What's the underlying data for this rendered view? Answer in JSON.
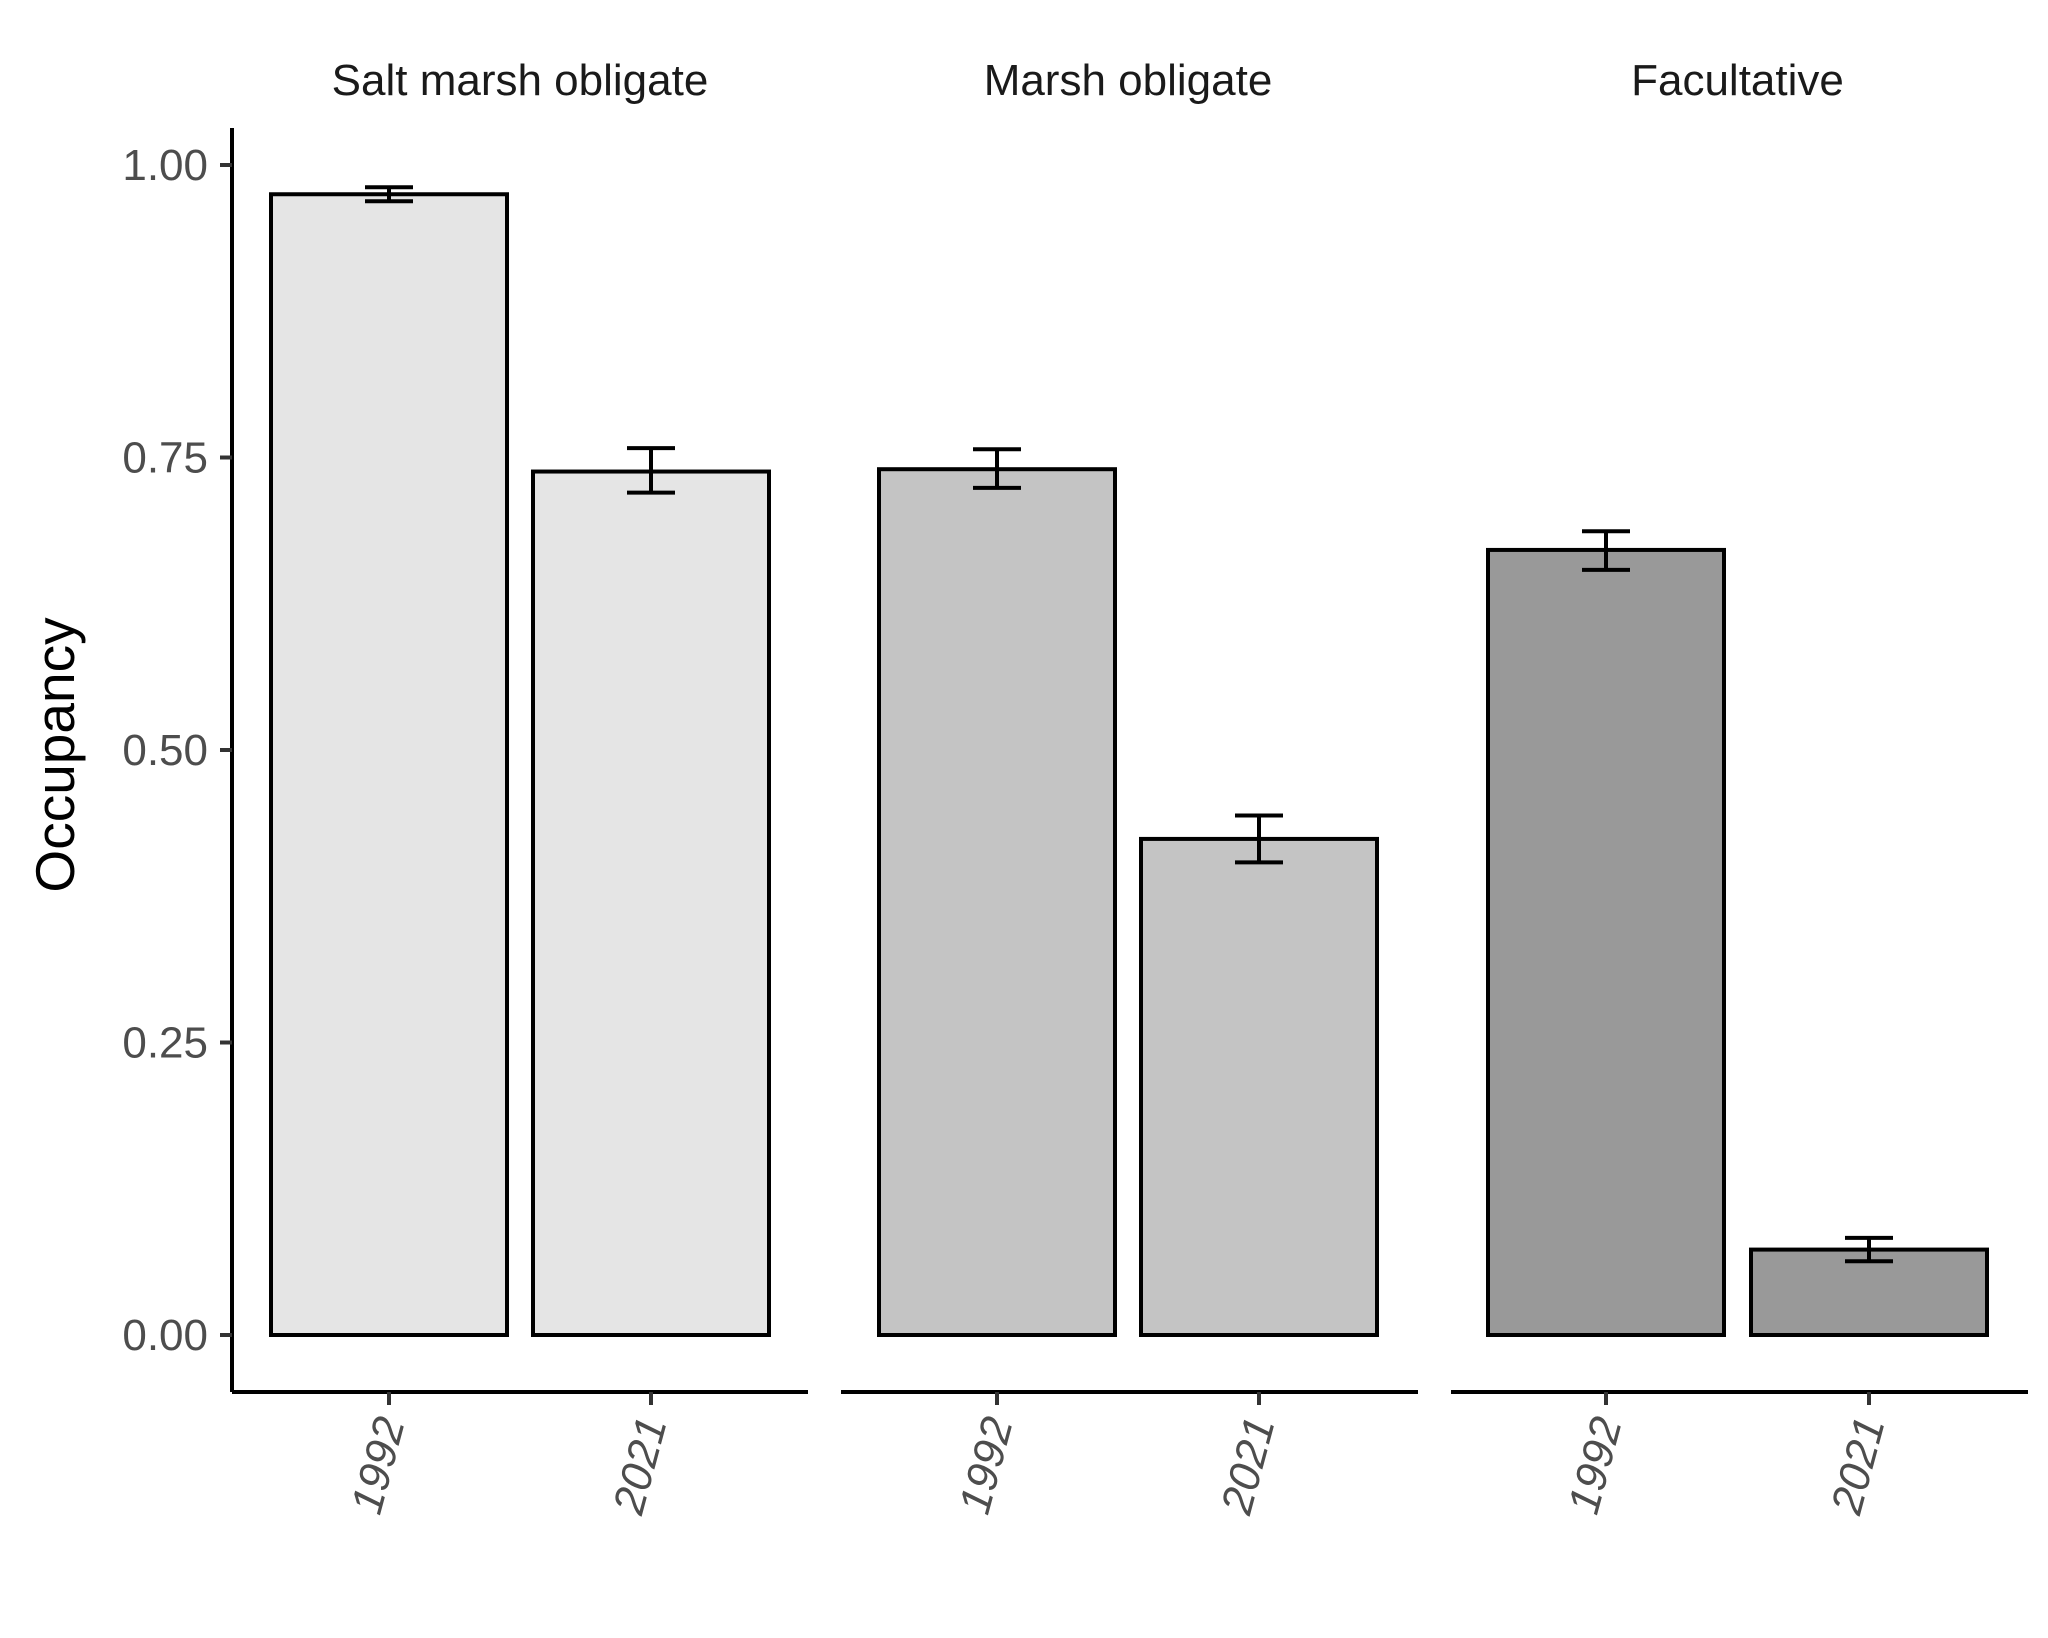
{
  "chart_data": {
    "type": "bar",
    "ylabel": "Occupancy",
    "xlabel": "",
    "ylim": [
      0,
      1
    ],
    "yticks": [
      "0.00",
      "0.25",
      "0.50",
      "0.75",
      "1.00"
    ],
    "grid": false,
    "panels": [
      {
        "label": "Salt marsh obligate",
        "fill": "#e5e5e5",
        "categories": [
          "1992",
          "2021"
        ],
        "values": [
          0.975,
          0.738
        ],
        "error_low": [
          0.969,
          0.72
        ],
        "error_high": [
          0.981,
          0.758
        ]
      },
      {
        "label": "Marsh obligate",
        "fill": "#c4c4c4",
        "categories": [
          "1992",
          "2021"
        ],
        "values": [
          0.74,
          0.424
        ],
        "error_low": [
          0.724,
          0.404
        ],
        "error_high": [
          0.757,
          0.444
        ]
      },
      {
        "label": "Facultative",
        "fill": "#999999",
        "categories": [
          "1992",
          "2021"
        ],
        "values": [
          0.671,
          0.073
        ],
        "error_low": [
          0.654,
          0.063
        ],
        "error_high": [
          0.687,
          0.083
        ]
      }
    ]
  }
}
